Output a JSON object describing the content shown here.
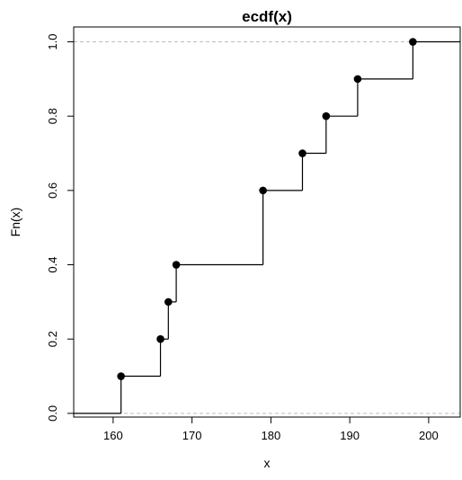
{
  "chart_data": {
    "type": "line",
    "subtype": "step (empirical cumulative distribution function)",
    "title": "ecdf(x)",
    "xlabel": "x",
    "ylabel": "Fn(x)",
    "xlim": [
      155,
      204
    ],
    "ylim": [
      -0.01,
      1.04
    ],
    "x_ticks": [
      160,
      170,
      180,
      190,
      200
    ],
    "y_ticks": [
      0.0,
      0.2,
      0.4,
      0.6,
      0.8,
      1.0
    ],
    "x_tick_labels": [
      "160",
      "170",
      "180",
      "190",
      "200"
    ],
    "y_tick_labels": [
      "0.0",
      "0.2",
      "0.4",
      "0.6",
      "0.8",
      "1.0"
    ],
    "reference_lines_y": [
      0,
      1
    ],
    "reference_line_style": "dashed gray",
    "grid": false,
    "series": [
      {
        "x": [
          161,
          166,
          167,
          168,
          179,
          184,
          187,
          191,
          198
        ],
        "y": [
          0.1,
          0.2,
          0.3,
          0.4,
          0.6,
          0.7,
          0.8,
          0.9,
          1.0
        ]
      }
    ],
    "colors": {
      "line": "#000000",
      "points": "#000000",
      "reference": "#bebebe"
    }
  }
}
